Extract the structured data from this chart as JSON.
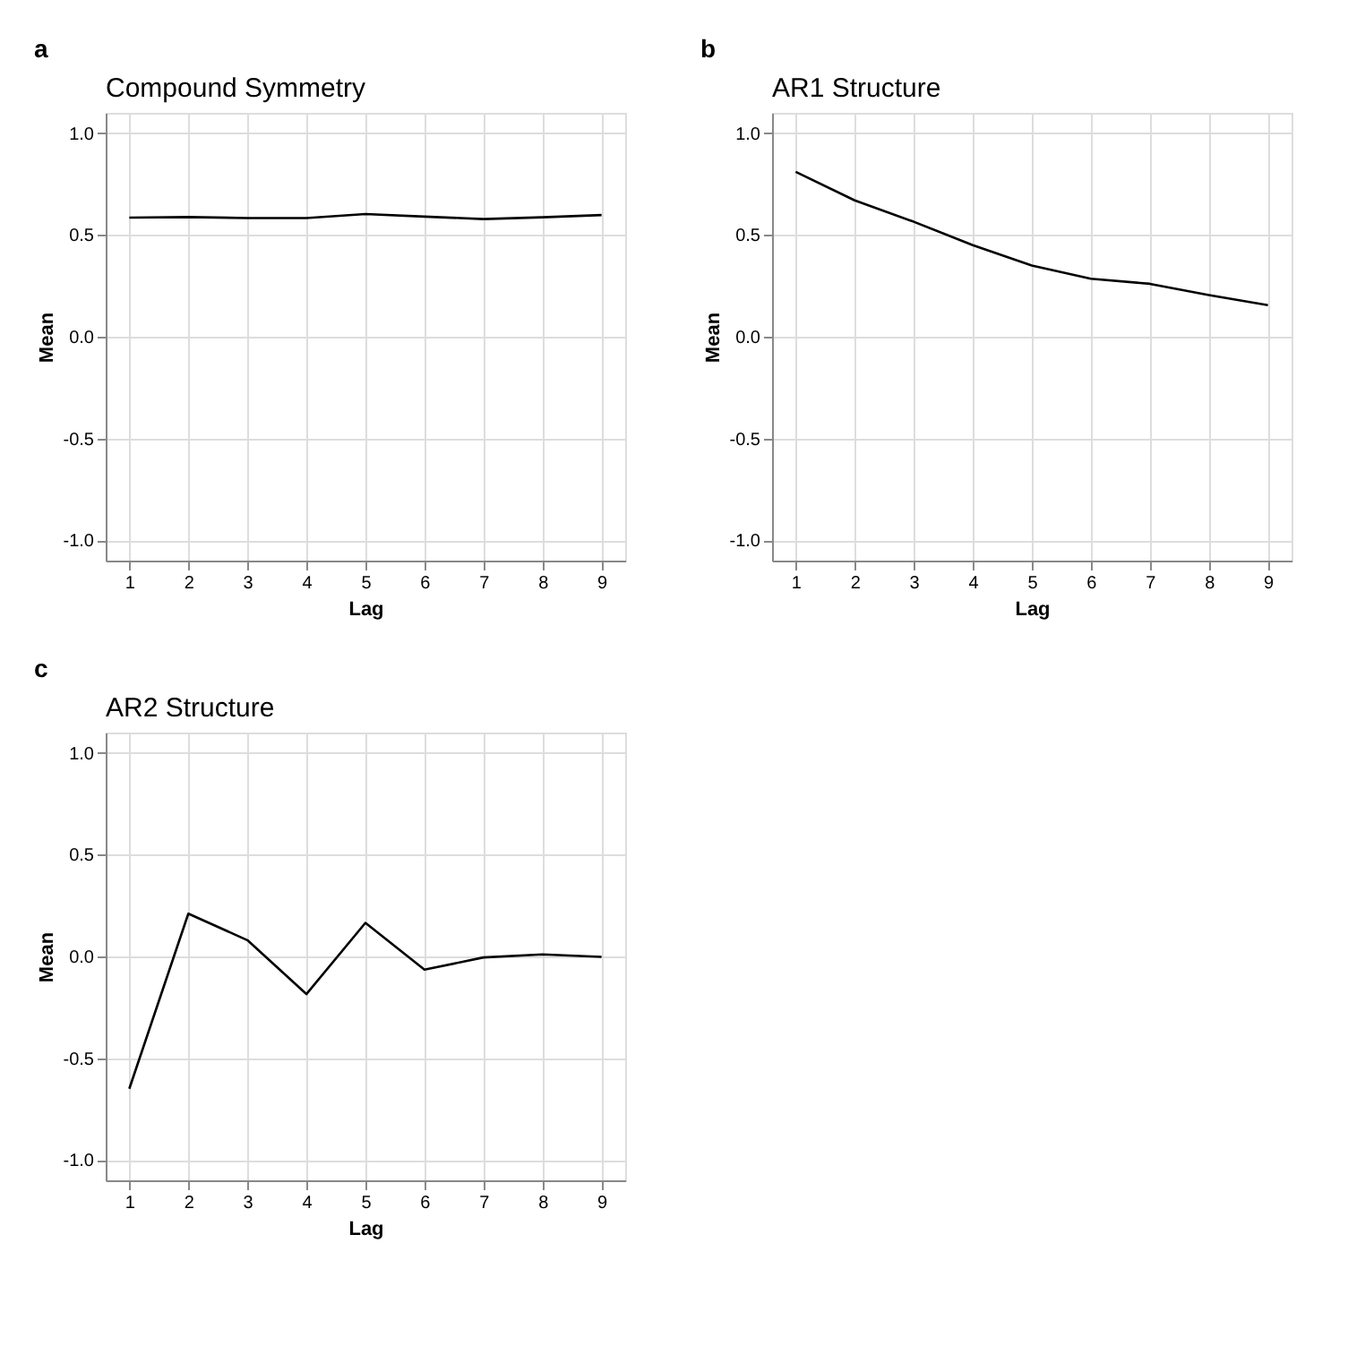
{
  "chart_data": [
    {
      "type": "line",
      "title": "Compound Symmetry",
      "xlabel": "Lag",
      "ylabel": "Mean",
      "annotations": [
        "a"
      ],
      "x": [
        1,
        2,
        3,
        4,
        5,
        6,
        7,
        8,
        9
      ],
      "series": [
        {
          "color": "#000000",
          "values": [
            0.585,
            0.588,
            0.583,
            0.583,
            0.603,
            0.59,
            0.578,
            0.587,
            0.598
          ]
        }
      ],
      "xlim": [
        0.6,
        9.4
      ],
      "xticks": [
        1,
        2,
        3,
        4,
        5,
        6,
        7,
        8,
        9
      ],
      "ylim": [
        -1.1,
        1.1
      ],
      "yticks": [
        {
          "value": -1,
          "label": "-1.0"
        },
        {
          "value": -0.5,
          "label": "-0.5"
        },
        {
          "value": 0,
          "label": "0.0"
        },
        {
          "value": 0.5,
          "label": "0.5"
        },
        {
          "value": 1,
          "label": "1.0"
        }
      ],
      "grid": true,
      "legend": false,
      "marker": "none",
      "line_style": "solid"
    },
    {
      "type": "line",
      "title": "AR1 Structure",
      "xlabel": "Lag",
      "ylabel": "Mean",
      "annotations": [
        "b"
      ],
      "x": [
        1,
        2,
        3,
        4,
        5,
        6,
        7,
        8,
        9
      ],
      "series": [
        {
          "color": "#000000",
          "values": [
            0.81,
            0.67,
            0.565,
            0.45,
            0.35,
            0.285,
            0.26,
            0.205,
            0.155
          ]
        }
      ],
      "xlim": [
        0.6,
        9.4
      ],
      "xticks": [
        1,
        2,
        3,
        4,
        5,
        6,
        7,
        8,
        9
      ],
      "ylim": [
        -1.1,
        1.1
      ],
      "yticks": [
        {
          "value": -1,
          "label": "-1.0"
        },
        {
          "value": -0.5,
          "label": "-0.5"
        },
        {
          "value": 0,
          "label": "0.0"
        },
        {
          "value": 0.5,
          "label": "0.5"
        },
        {
          "value": 1,
          "label": "1.0"
        }
      ],
      "grid": true,
      "legend": false,
      "marker": "none",
      "line_style": "solid"
    },
    {
      "type": "line",
      "title": "AR2 Structure",
      "xlabel": "Lag",
      "ylabel": "Mean",
      "annotations": [
        "c"
      ],
      "x": [
        1,
        2,
        3,
        4,
        5,
        6,
        7,
        8,
        9
      ],
      "series": [
        {
          "color": "#000000",
          "values": [
            -0.65,
            0.21,
            0.08,
            -0.185,
            0.165,
            -0.065,
            -0.005,
            0.01,
            -0.002
          ]
        }
      ],
      "xlim": [
        0.6,
        9.4
      ],
      "xticks": [
        1,
        2,
        3,
        4,
        5,
        6,
        7,
        8,
        9
      ],
      "ylim": [
        -1.1,
        1.1
      ],
      "yticks": [
        {
          "value": -1,
          "label": "-1.0"
        },
        {
          "value": -0.5,
          "label": "-0.5"
        },
        {
          "value": 0,
          "label": "0.0"
        },
        {
          "value": 0.5,
          "label": "0.5"
        },
        {
          "value": 1,
          "label": "1.0"
        }
      ],
      "grid": true,
      "legend": false,
      "marker": "none",
      "line_style": "solid"
    }
  ]
}
